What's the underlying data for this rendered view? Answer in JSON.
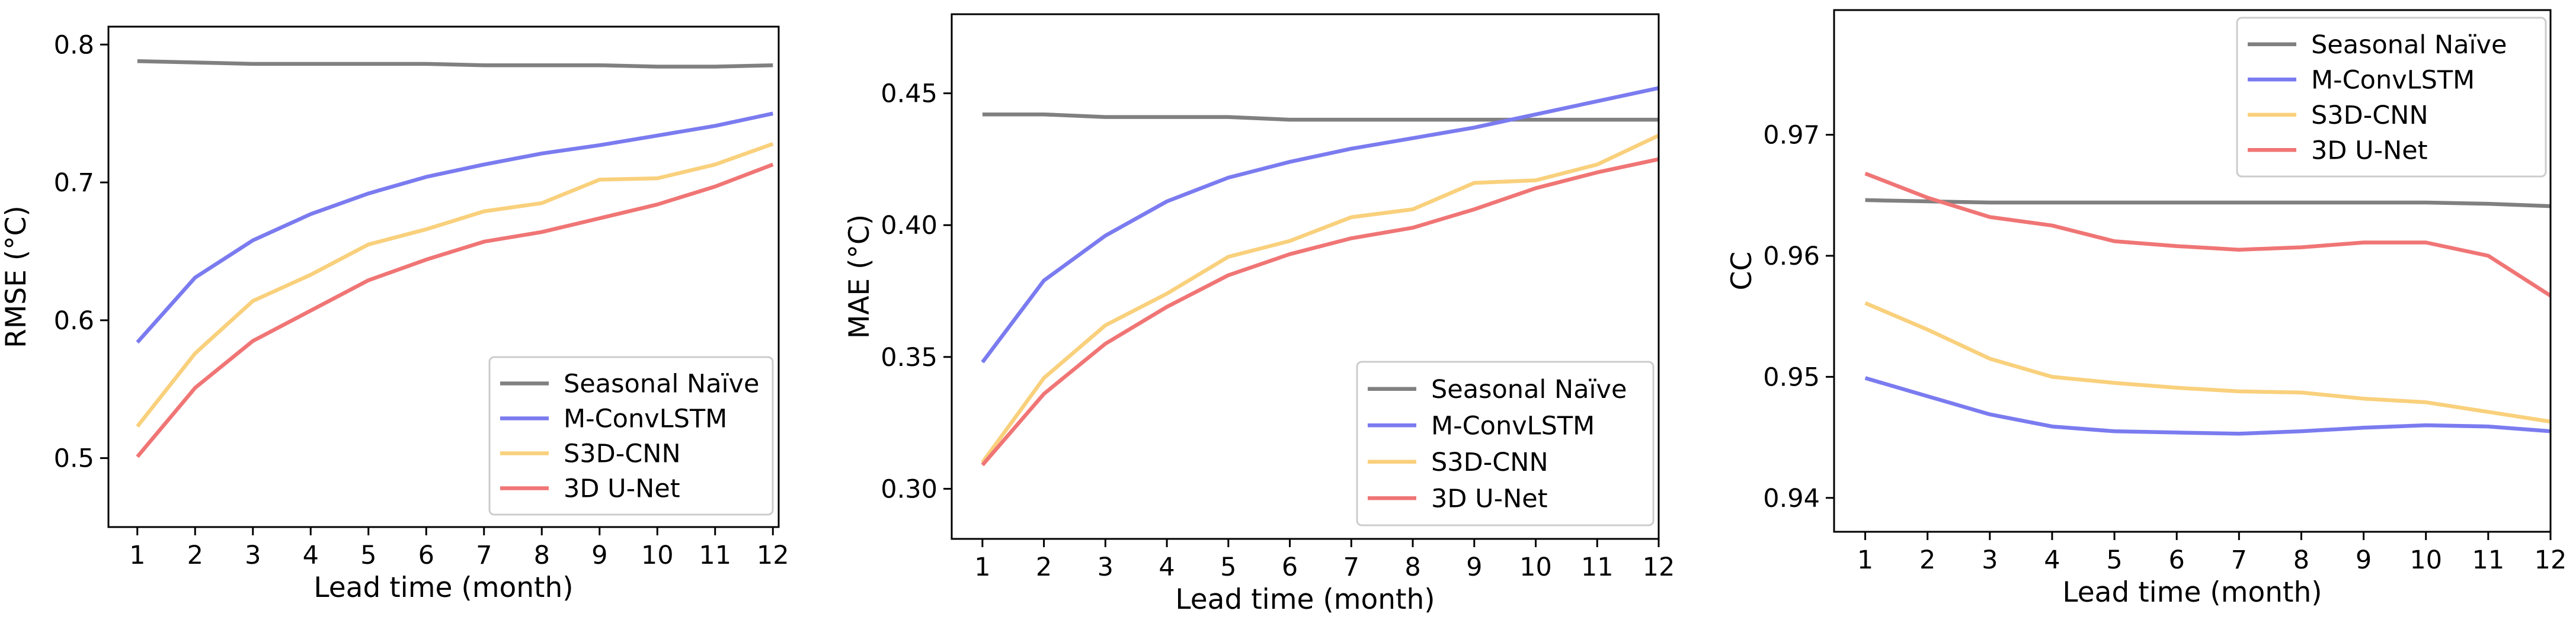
{
  "chart_data": [
    {
      "type": "line",
      "title": "",
      "xlabel": "Lead time (month)",
      "ylabel": "RMSE (°C)",
      "x": [
        1,
        2,
        3,
        4,
        5,
        6,
        7,
        8,
        9,
        10,
        11,
        12
      ],
      "xlim": [
        0.5,
        12.1
      ],
      "ylim": [
        0.45,
        0.813
      ],
      "yticks": [
        0.5,
        0.6,
        0.7,
        0.8
      ],
      "ytick_labels": [
        "0.5",
        "0.6",
        "0.7",
        "0.8"
      ],
      "grid": false,
      "legend_position": "bottom-right",
      "series": [
        {
          "name": "Seasonal Naïve",
          "color": "#808080",
          "values": [
            0.788,
            0.787,
            0.786,
            0.786,
            0.786,
            0.786,
            0.785,
            0.785,
            0.785,
            0.784,
            0.784,
            0.785
          ]
        },
        {
          "name": "M-ConvLSTM",
          "color": "#7b7bf0",
          "values": [
            0.584,
            0.631,
            0.658,
            0.677,
            0.692,
            0.704,
            0.713,
            0.721,
            0.727,
            0.734,
            0.741,
            0.75
          ]
        },
        {
          "name": "S3D-CNN",
          "color": "#f9d07c",
          "values": [
            0.523,
            0.576,
            0.614,
            0.633,
            0.655,
            0.666,
            0.679,
            0.685,
            0.702,
            0.703,
            0.713,
            0.728
          ]
        },
        {
          "name": "3D U-Net",
          "color": "#f07575",
          "values": [
            0.501,
            0.551,
            0.585,
            0.607,
            0.629,
            0.644,
            0.657,
            0.664,
            0.674,
            0.684,
            0.697,
            0.713
          ]
        }
      ]
    },
    {
      "type": "line",
      "title": "",
      "xlabel": "Lead time (month)",
      "ylabel": "MAE (°C)",
      "x": [
        1,
        2,
        3,
        4,
        5,
        6,
        7,
        8,
        9,
        10,
        11,
        12
      ],
      "xlim": [
        0.5,
        12.0
      ],
      "ylim": [
        0.281,
        0.48
      ],
      "yticks": [
        0.3,
        0.35,
        0.4,
        0.45
      ],
      "ytick_labels": [
        "0.30",
        "0.35",
        "0.40",
        "0.45"
      ],
      "grid": false,
      "legend_position": "bottom-right",
      "series": [
        {
          "name": "Seasonal Naïve",
          "color": "#808080",
          "values": [
            0.442,
            0.442,
            0.441,
            0.441,
            0.441,
            0.44,
            0.44,
            0.44,
            0.44,
            0.44,
            0.44,
            0.44
          ]
        },
        {
          "name": "M-ConvLSTM",
          "color": "#7b7bf0",
          "values": [
            0.348,
            0.379,
            0.396,
            0.409,
            0.418,
            0.424,
            0.429,
            0.433,
            0.437,
            0.442,
            0.447,
            0.452
          ]
        },
        {
          "name": "S3D-CNN",
          "color": "#f9d07c",
          "values": [
            0.31,
            0.342,
            0.362,
            0.374,
            0.388,
            0.394,
            0.403,
            0.406,
            0.416,
            0.417,
            0.423,
            0.434
          ]
        },
        {
          "name": "3D U-Net",
          "color": "#f07575",
          "values": [
            0.309,
            0.336,
            0.355,
            0.369,
            0.381,
            0.389,
            0.395,
            0.399,
            0.406,
            0.414,
            0.42,
            0.425
          ]
        }
      ]
    },
    {
      "type": "line",
      "title": "",
      "xlabel": "Lead time (month)",
      "ylabel": "CC",
      "x": [
        1,
        2,
        3,
        4,
        5,
        6,
        7,
        8,
        9,
        10,
        11,
        12
      ],
      "xlim": [
        0.5,
        12.0
      ],
      "ylim": [
        0.9372,
        0.9803
      ],
      "yticks": [
        0.94,
        0.95,
        0.96,
        0.97
      ],
      "ytick_labels": [
        "0.94",
        "0.95",
        "0.96",
        "0.97"
      ],
      "grid": false,
      "legend_position": "top-right",
      "series": [
        {
          "name": "Seasonal Naïve",
          "color": "#808080",
          "values": [
            0.9646,
            0.9645,
            0.9644,
            0.9644,
            0.9644,
            0.9644,
            0.9644,
            0.9644,
            0.9644,
            0.9644,
            0.9643,
            0.9641
          ]
        },
        {
          "name": "M-ConvLSTM",
          "color": "#7b7bf0",
          "values": [
            0.9499,
            0.9484,
            0.9469,
            0.9459,
            0.9455,
            0.9454,
            0.9453,
            0.9455,
            0.9458,
            0.946,
            0.9459,
            0.9455
          ]
        },
        {
          "name": "S3D-CNN",
          "color": "#f9d07c",
          "values": [
            0.9561,
            0.9539,
            0.9515,
            0.95,
            0.9495,
            0.9491,
            0.9488,
            0.9487,
            0.9482,
            0.9479,
            0.9471,
            0.9463
          ]
        },
        {
          "name": "3D U-Net",
          "color": "#f07575",
          "values": [
            0.9668,
            0.9648,
            0.9632,
            0.9625,
            0.9612,
            0.9608,
            0.9605,
            0.9607,
            0.9611,
            0.9611,
            0.96,
            0.9567
          ]
        }
      ]
    }
  ]
}
